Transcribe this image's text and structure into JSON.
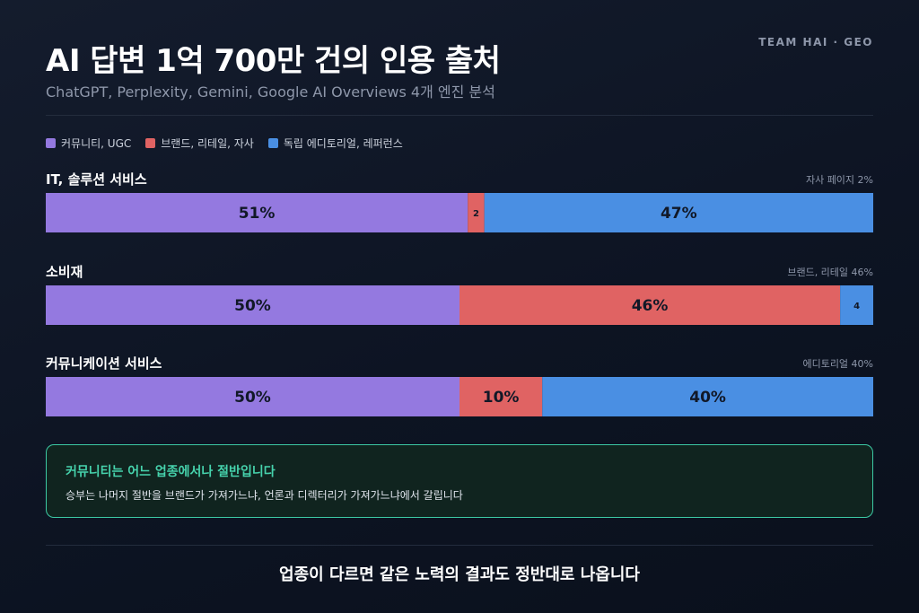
{
  "header": {
    "title": "AI 답변 1억 700만 건의 인용 출처",
    "subtitle": "ChatGPT, Perplexity, Gemini, Google AI Overviews 4개 엔진 분석",
    "brand": "TEAM HAI · GEO"
  },
  "chart_data": {
    "type": "bar",
    "stacked": true,
    "orientation": "horizontal",
    "categories": [
      "IT, 솔루션 서비스",
      "소비재",
      "커뮤니케이션 서비스"
    ],
    "notes": [
      "자사 페이지 2%",
      "브랜드, 리테일 46%",
      "에디토리얼 40%"
    ],
    "series": [
      {
        "name": "커뮤니티, UGC",
        "color": "#9479e0",
        "values": [
          51,
          50,
          50
        ],
        "labels": [
          "51%",
          "50%",
          "50%"
        ]
      },
      {
        "name": "브랜드, 리테일, 자사",
        "color": "#e06363",
        "values": [
          2,
          46,
          10
        ],
        "labels": [
          "2",
          "46%",
          "10%"
        ]
      },
      {
        "name": "독립 에디토리얼, 레퍼런스",
        "color": "#4a8fe3",
        "values": [
          47,
          4,
          40
        ],
        "labels": [
          "47%",
          "4",
          "40%"
        ]
      }
    ],
    "xlim": [
      0,
      100
    ],
    "legend_position": "top-left"
  },
  "callout": {
    "title": "커뮤니티는 어느 업종에서나 절반입니다",
    "body": "승부는 나머지 절반을 브랜드가 가져가느냐, 언론과 디렉터리가 가져가느냐에서 갈립니다"
  },
  "footer": "업종이 다르면 같은 노력의 결과도 정반대로 나옵니다"
}
